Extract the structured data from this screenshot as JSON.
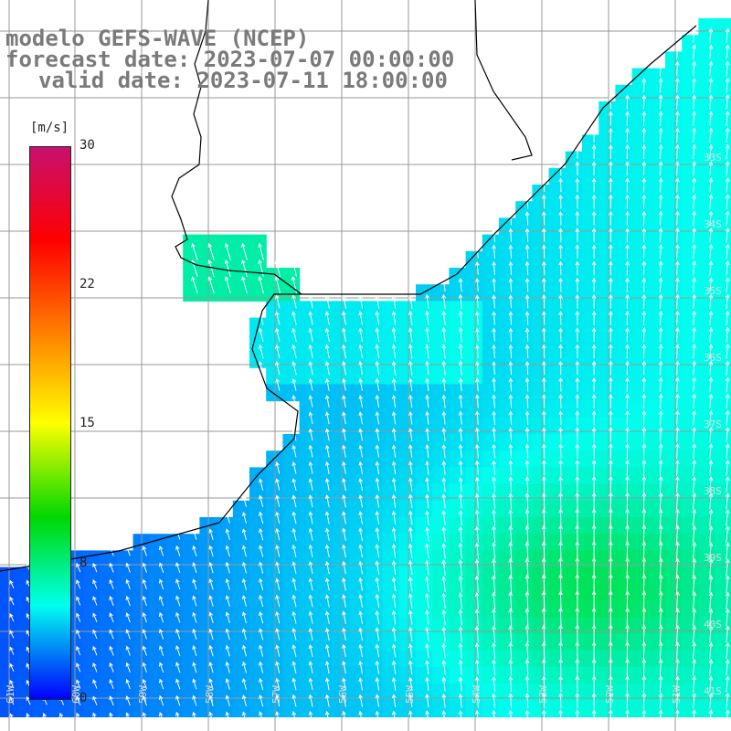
{
  "title": {
    "line1": "modelo GEFS-WAVE (NCEP)",
    "line2": "forecast date: 2023-07-07 00:00:00",
    "line3": "valid date: 2023-07-11 18:00:00"
  },
  "colorbar": {
    "unit": "[m/s]",
    "tick_labels": [
      "30",
      "22",
      "15",
      "8",
      "0"
    ],
    "tick_values": [
      30,
      22,
      15,
      8,
      0
    ],
    "colors": [
      "#c8106e",
      "#ff0000",
      "#ff7a00",
      "#ffff00",
      "#00d800",
      "#00ffee",
      "#0000ff"
    ]
  },
  "axes": {
    "lat_labels": [
      "33S",
      "34S",
      "35S",
      "36S",
      "37S",
      "38S",
      "39S",
      "40S",
      "41S"
    ],
    "lon_labels": [
      "61W",
      "60W",
      "59W",
      "58W",
      "57W",
      "56W",
      "55W",
      "54W",
      "53W",
      "52W",
      "51W"
    ]
  },
  "colors": {
    "title": "#7a7a7a",
    "grid": "#999999",
    "coast": "#000000",
    "arrow": "#ffffff"
  }
}
